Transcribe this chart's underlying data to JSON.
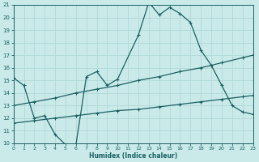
{
  "xlabel": "Humidex (Indice chaleur)",
  "xlim": [
    0,
    23
  ],
  "ylim": [
    10,
    21
  ],
  "xticks": [
    0,
    1,
    2,
    3,
    4,
    5,
    6,
    7,
    8,
    9,
    10,
    11,
    12,
    13,
    14,
    15,
    16,
    17,
    18,
    19,
    20,
    21,
    22,
    23
  ],
  "yticks": [
    10,
    11,
    12,
    13,
    14,
    15,
    16,
    17,
    18,
    19,
    20,
    21
  ],
  "bg_color": "#caeaea",
  "grid_color": "#b0d8d8",
  "line_color": "#1a6060",
  "series1_x": [
    0,
    1,
    2,
    3,
    4,
    5,
    6,
    7,
    8,
    9,
    10,
    12,
    13,
    14,
    15,
    16,
    17,
    18,
    19,
    20,
    21,
    22,
    23
  ],
  "series1_y": [
    15.2,
    14.6,
    12.0,
    12.2,
    10.7,
    9.9,
    9.9,
    15.3,
    15.7,
    14.6,
    15.1,
    18.6,
    21.2,
    20.2,
    20.8,
    20.3,
    19.6,
    17.4,
    16.2,
    14.6,
    13.0,
    12.5,
    12.3
  ],
  "series2_x": [
    0,
    2,
    4,
    6,
    8,
    10,
    12,
    14,
    16,
    18,
    20,
    22,
    23
  ],
  "series2_y": [
    13.0,
    13.3,
    13.6,
    14.0,
    14.3,
    14.6,
    15.0,
    15.3,
    15.7,
    16.0,
    16.4,
    16.8,
    17.0
  ],
  "series3_x": [
    0,
    2,
    4,
    6,
    8,
    10,
    12,
    14,
    16,
    18,
    20,
    22,
    23
  ],
  "series3_y": [
    11.6,
    11.8,
    12.0,
    12.2,
    12.4,
    12.6,
    12.7,
    12.9,
    13.1,
    13.3,
    13.5,
    13.7,
    13.8
  ]
}
